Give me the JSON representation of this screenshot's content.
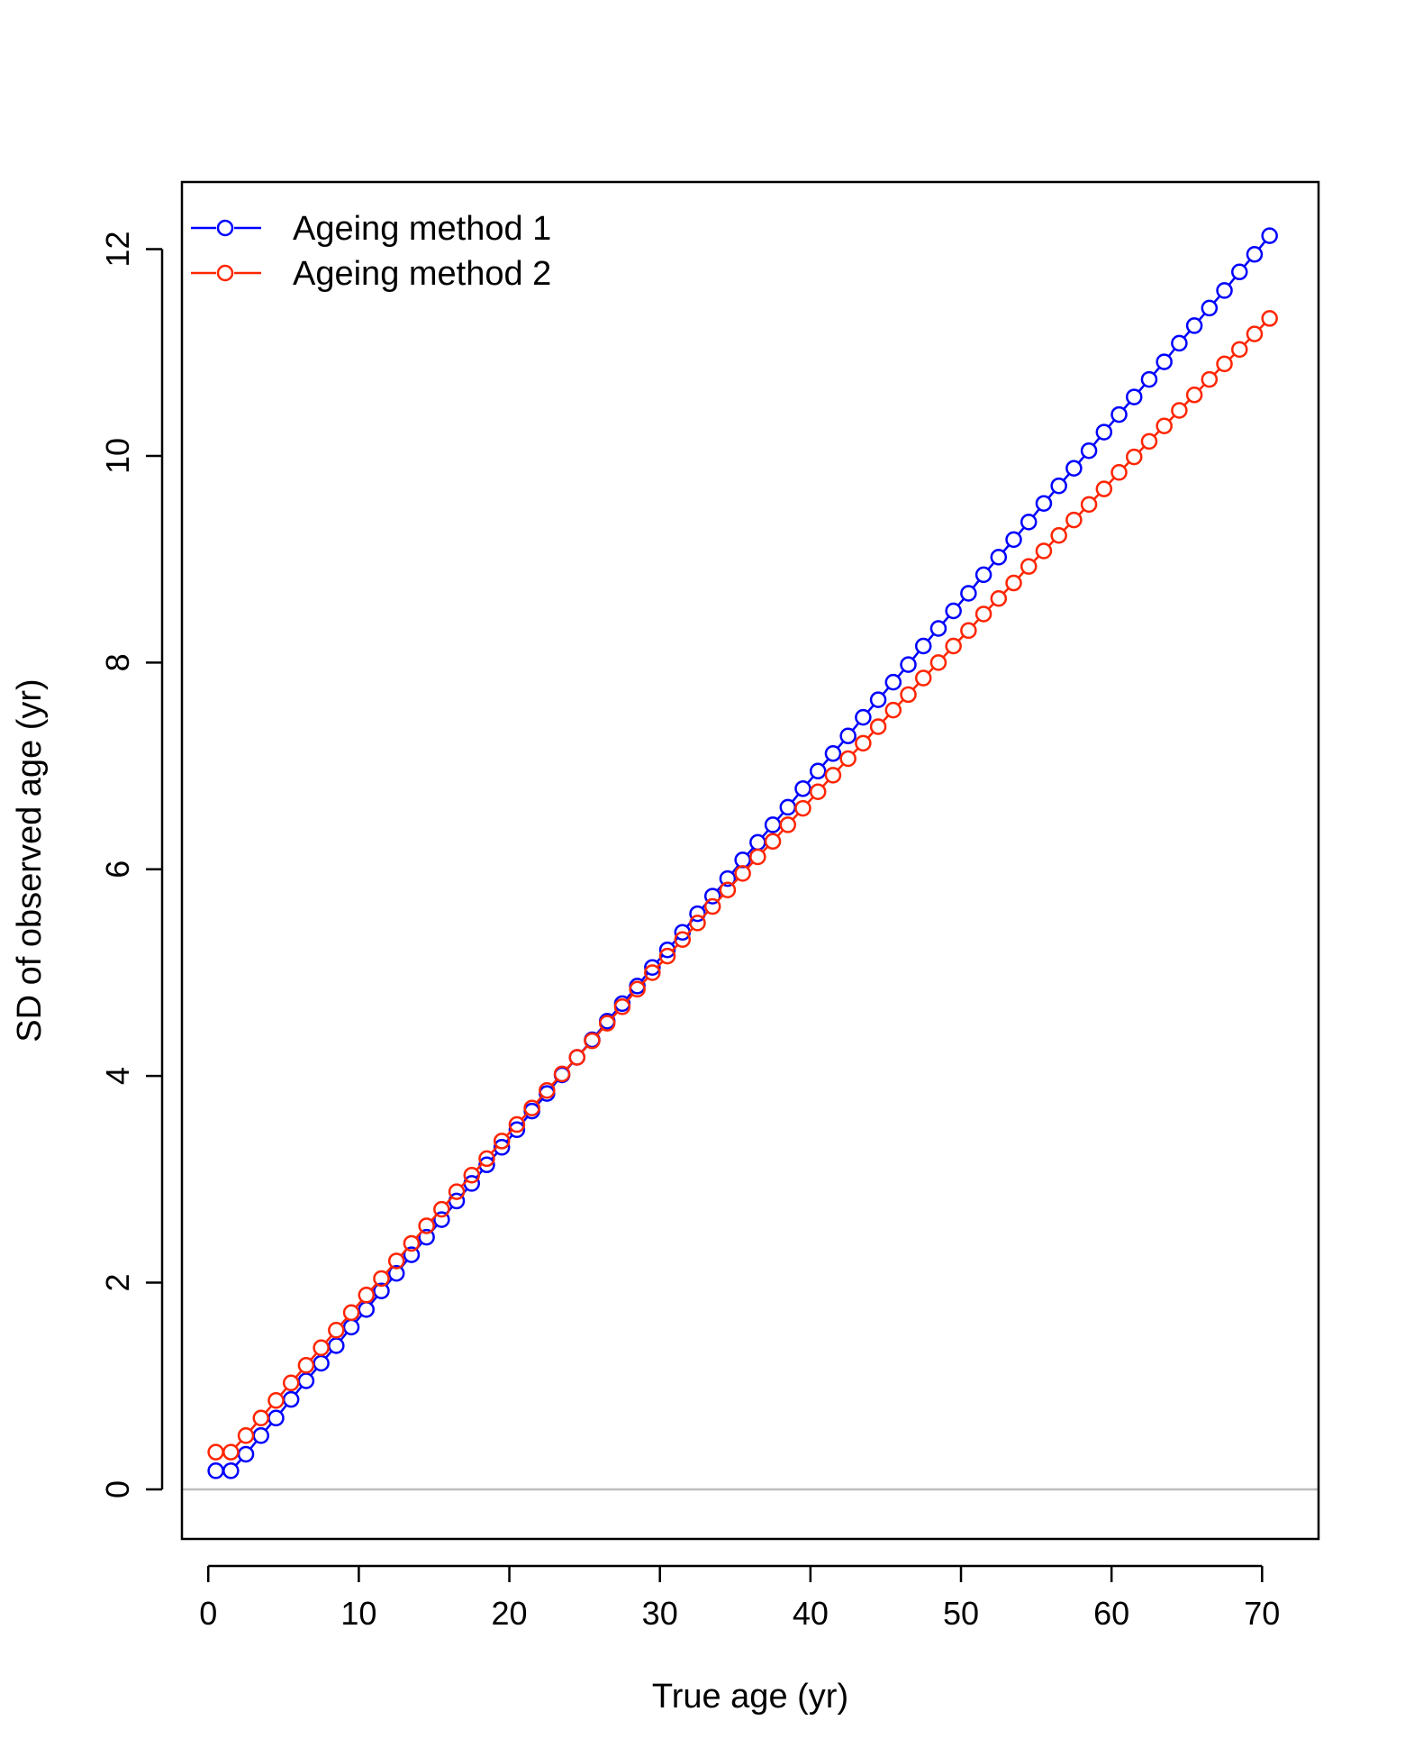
{
  "chart_data": {
    "type": "line",
    "xlabel": "True age (yr)",
    "ylabel": "SD of observed age (yr)",
    "xlim": [
      -1.75,
      73.75
    ],
    "ylim": [
      -0.48,
      12.65
    ],
    "x_ticks": [
      "0",
      "10",
      "20",
      "30",
      "40",
      "50",
      "60",
      "70"
    ],
    "y_ticks": [
      "0",
      "2",
      "4",
      "6",
      "8",
      "10",
      "12"
    ],
    "reference_line": {
      "y": 0,
      "color": "#bebebe"
    },
    "legend_position": "top-left",
    "x_start": 0.5,
    "x_step": 1,
    "series": [
      {
        "name": "Ageing method 1",
        "color": "#0000ff",
        "marker": "open-circle",
        "values": [
          0.18,
          0.18,
          0.34,
          0.52,
          0.69,
          0.87,
          1.05,
          1.22,
          1.39,
          1.57,
          1.74,
          1.92,
          2.09,
          2.27,
          2.44,
          2.61,
          2.79,
          2.96,
          3.14,
          3.31,
          3.48,
          3.66,
          3.83,
          4.01,
          4.18,
          4.35,
          4.53,
          4.7,
          4.87,
          5.05,
          5.22,
          5.39,
          5.57,
          5.74,
          5.91,
          6.09,
          6.26,
          6.43,
          6.6,
          6.78,
          6.95,
          7.12,
          7.29,
          7.47,
          7.64,
          7.81,
          7.98,
          8.16,
          8.33,
          8.5,
          8.67,
          8.85,
          9.02,
          9.19,
          9.36,
          9.54,
          9.71,
          9.88,
          10.05,
          10.23,
          10.4,
          10.57,
          10.74,
          10.91,
          11.09,
          11.26,
          11.43,
          11.6,
          11.78,
          11.95,
          12.13
        ]
      },
      {
        "name": "Ageing method 2",
        "color": "#ff2500",
        "marker": "open-circle",
        "values": [
          0.36,
          0.36,
          0.52,
          0.69,
          0.86,
          1.03,
          1.2,
          1.37,
          1.54,
          1.71,
          1.88,
          2.04,
          2.21,
          2.38,
          2.55,
          2.71,
          2.88,
          3.04,
          3.2,
          3.37,
          3.53,
          3.69,
          3.86,
          4.02,
          4.18,
          4.34,
          4.51,
          4.67,
          4.84,
          5.0,
          5.16,
          5.32,
          5.48,
          5.64,
          5.8,
          5.96,
          6.12,
          6.27,
          6.43,
          6.59,
          6.75,
          6.91,
          7.07,
          7.22,
          7.38,
          7.54,
          7.69,
          7.85,
          8.0,
          8.16,
          8.31,
          8.47,
          8.62,
          8.77,
          8.93,
          9.08,
          9.23,
          9.38,
          9.53,
          9.68,
          9.84,
          9.99,
          10.14,
          10.29,
          10.44,
          10.59,
          10.74,
          10.89,
          11.03,
          11.18,
          11.33
        ]
      }
    ]
  }
}
